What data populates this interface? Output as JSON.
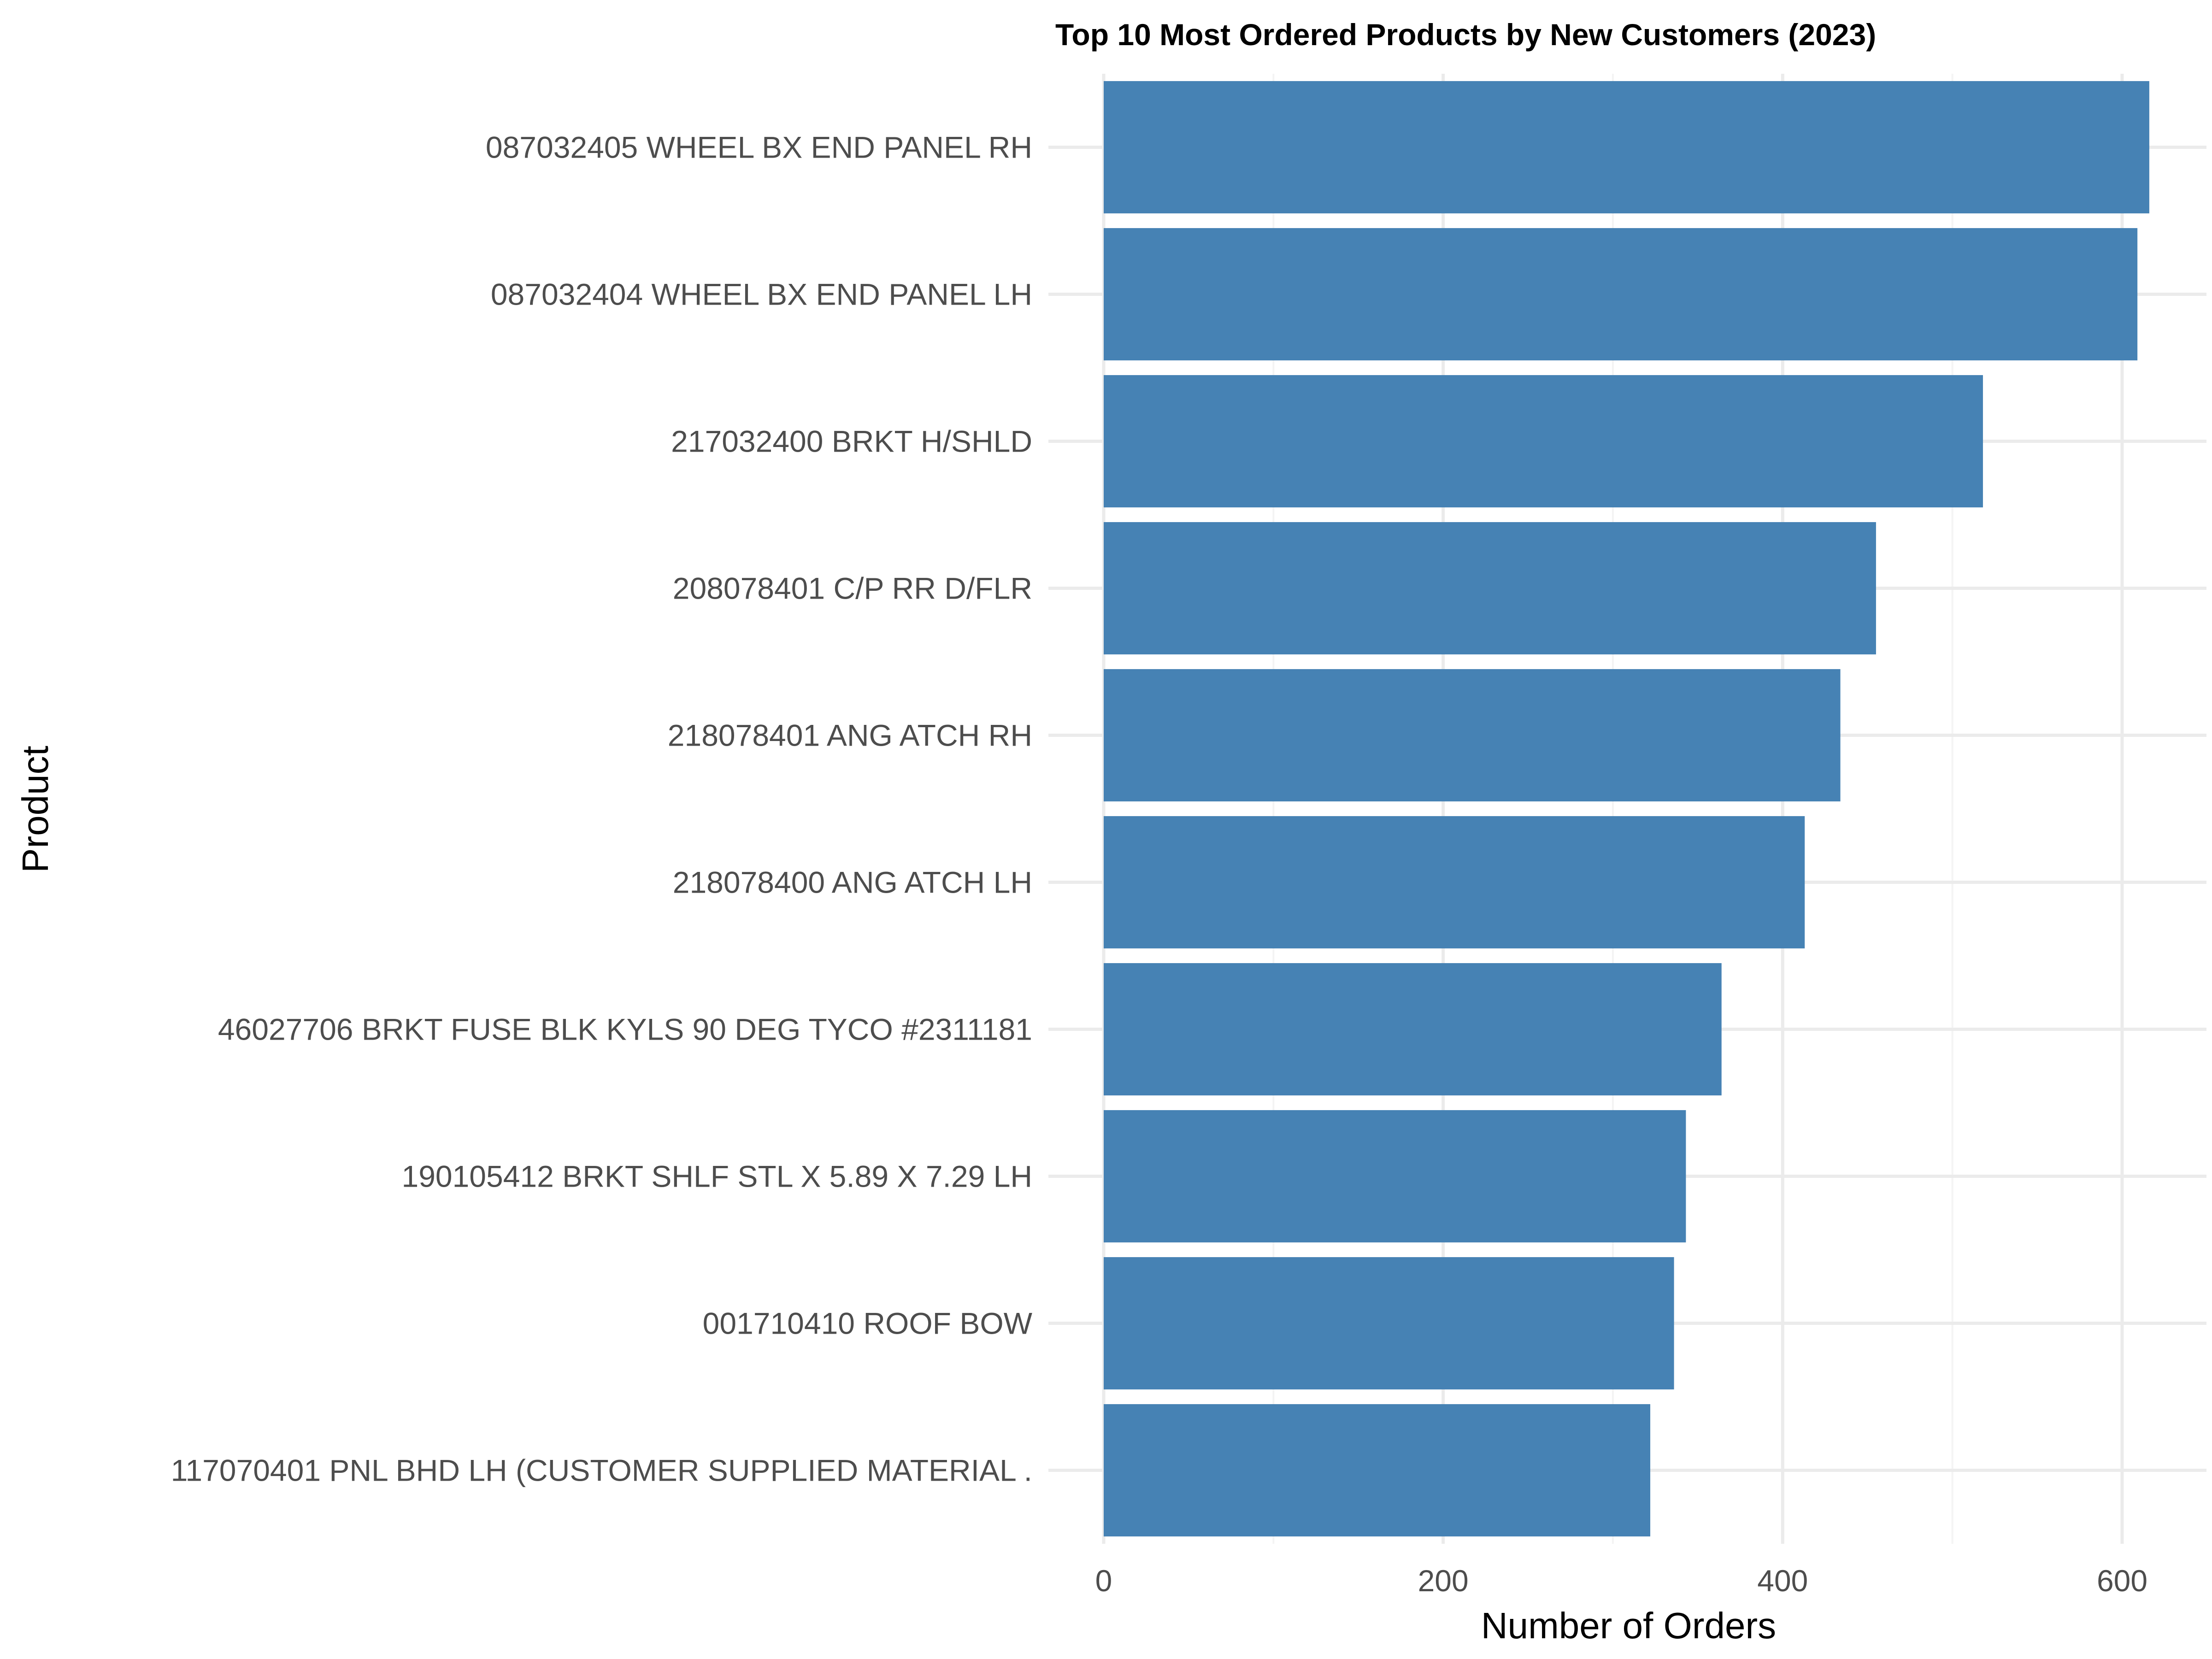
{
  "chart_data": {
    "type": "bar",
    "orientation": "horizontal",
    "title": "Top 10 Most Ordered Products by New Customers (2023)",
    "xlabel": "Number of Orders",
    "ylabel": "Product",
    "categories": [
      "087032405 WHEEL BX END PANEL RH",
      "087032404 WHEEL BX END PANEL LH",
      "217032400 BRKT H/SHLD",
      "208078401 C/P RR D/FLR",
      "218078401 ANG ATCH RH",
      "218078400 ANG ATCH LH",
      "46027706 BRKT FUSE BLK KYLS 90 DEG TYCO #2311181",
      "190105412 BRKT SHLF STL  X 5.89 X 7.29 LH",
      "001710410 ROOF BOW",
      "117070401 PNL BHD LH (CUSTOMER SUPPLIED MATERIAL ."
    ],
    "values": [
      616,
      609,
      518,
      455,
      434,
      413,
      364,
      343,
      336,
      322
    ],
    "xlim": [
      0,
      640
    ],
    "xticks": [
      0,
      200,
      400,
      600
    ],
    "xtick_labels": [
      "0",
      "200",
      "400",
      "600"
    ],
    "bar_color": "#4682b4",
    "grid": true,
    "legend": "none"
  }
}
